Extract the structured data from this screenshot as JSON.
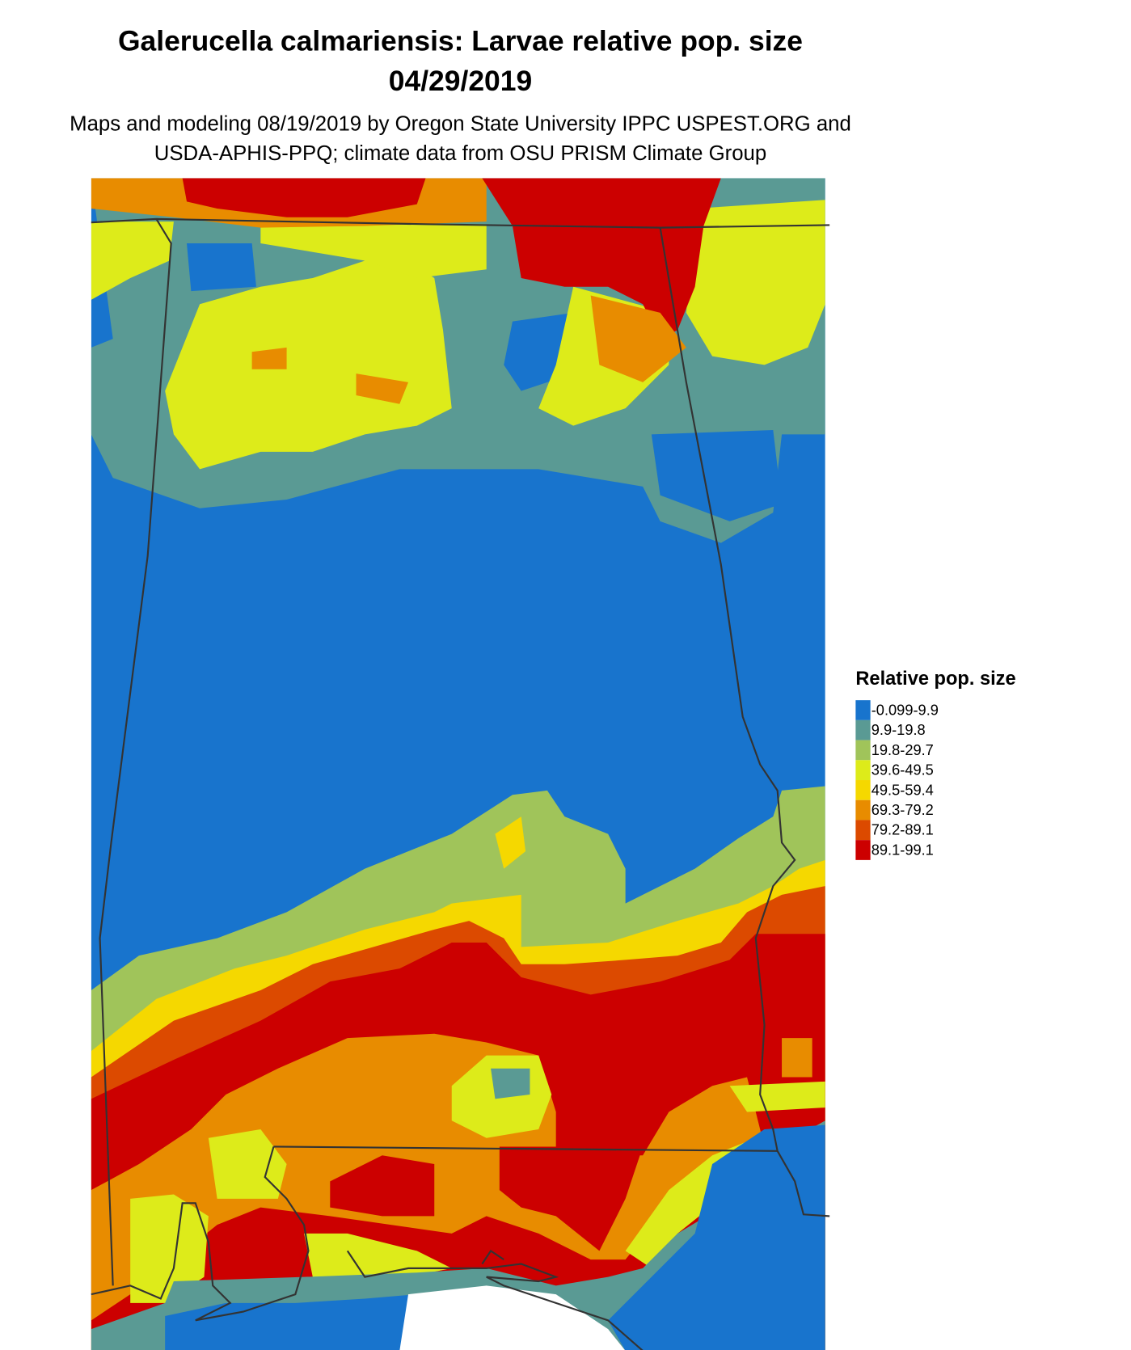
{
  "title": {
    "line1": "Galerucella calmariensis: Larvae relative pop. size",
    "line2": "04/29/2019"
  },
  "subtitle": {
    "line1": "Maps and modeling 08/19/2019 by Oregon State University IPPC USPEST.ORG and",
    "line2": "USDA-APHIS-PPQ; climate data from OSU PRISM Climate Group"
  },
  "legend": {
    "title": "Relative pop. size",
    "items": [
      {
        "label": "-0.099-9.9",
        "color": "#1874CD"
      },
      {
        "label": "9.9-19.8",
        "color": "#5A9A94"
      },
      {
        "label": "19.8-29.7",
        "color": "#A0C45A"
      },
      {
        "label": "39.6-49.5",
        "color": "#DDEB1A"
      },
      {
        "label": "49.5-59.4",
        "color": "#F5D800"
      },
      {
        "label": "69.3-79.2",
        "color": "#E88C00"
      },
      {
        "label": "79.2-89.1",
        "color": "#DC4A00"
      },
      {
        "label": "89.1-99.1",
        "color": "#CC0000"
      }
    ]
  }
}
